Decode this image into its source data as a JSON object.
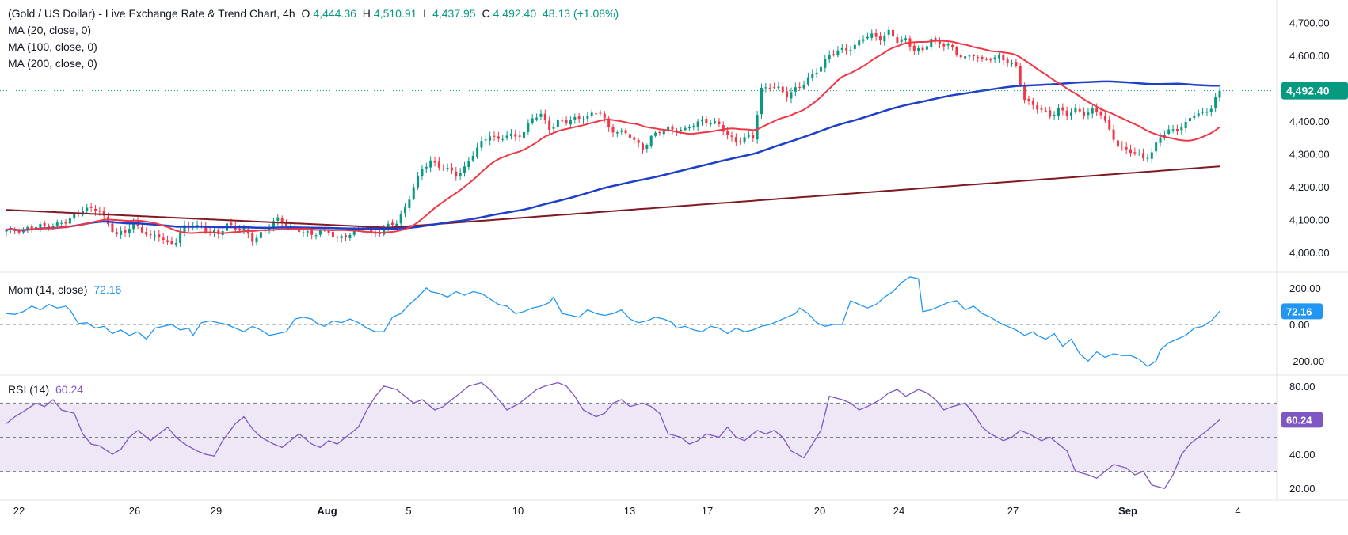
{
  "header": {
    "title": "(Gold / US Dollar) - Live Exchange Rate & Trend Chart, 4h",
    "o_label": "O",
    "o_value": "4,444.36",
    "h_label": "H",
    "h_value": "4,510.91",
    "l_label": "L",
    "l_value": "4,437.95",
    "c_label": "C",
    "c_value": "4,492.40",
    "change": "48.13 (+1.08%)",
    "ma_labels": [
      "MA (20, close, 0)",
      "MA (100, close, 0)",
      "MA (200, close, 0)"
    ]
  },
  "momentum": {
    "label": "Mom (14, close)",
    "value": "72.16"
  },
  "rsi": {
    "label": "RSI (14)",
    "value": "60.24"
  },
  "price_axis": {
    "ticks": [
      "4,700.00",
      "4,600.00",
      "4,500.00",
      "4,400.00",
      "4,300.00",
      "4,200.00",
      "4,100.00",
      "4,000.00"
    ],
    "last": "4,492.40"
  },
  "mom_axis": {
    "ticks": [
      "200.00",
      "0.00",
      "-200.00"
    ],
    "last": "72.16"
  },
  "rsi_axis": {
    "ticks": [
      "80.00",
      "40.00",
      "20.00"
    ],
    "last": "60.24"
  },
  "x_axis": {
    "ticks": [
      "22",
      "26",
      "29",
      "Aug",
      "5",
      "10",
      "13",
      "17",
      "20",
      "24",
      "27",
      "Sep",
      "4"
    ]
  },
  "colors": {
    "up": "#089981",
    "down": "#f23645",
    "ma20": "#f23645",
    "ma100": "#1e40c8",
    "ma200": "#801922",
    "mom": "#2196f3",
    "rsi": "#7e57c2",
    "rsi_band": "#ede7f6",
    "last_price": "#089981"
  },
  "chart_data": [
    {
      "type": "candlestick",
      "title": "(Gold / US Dollar) - Live Exchange Rate & Trend Chart, 4h",
      "x_ticks": [
        "22",
        "26",
        "29",
        "Aug",
        "5",
        "10",
        "13",
        "17",
        "20",
        "24",
        "27",
        "Sep",
        "4"
      ],
      "ylim": [
        3950,
        4720
      ],
      "close_path": [
        [
          0,
          4065
        ],
        [
          14,
          4090
        ],
        [
          18,
          4135
        ],
        [
          22,
          4125
        ],
        [
          24,
          4090
        ],
        [
          26,
          4055
        ],
        [
          28,
          4060
        ],
        [
          30,
          4090
        ],
        [
          32,
          4070
        ],
        [
          34,
          4045
        ],
        [
          36,
          4050
        ],
        [
          38,
          4030
        ],
        [
          40,
          4035
        ],
        [
          42,
          4075
        ],
        [
          44,
          4085
        ],
        [
          46,
          4080
        ],
        [
          48,
          4060
        ],
        [
          50,
          4055
        ],
        [
          52,
          4090
        ],
        [
          54,
          4075
        ],
        [
          56,
          4065
        ],
        [
          58,
          4040
        ],
        [
          62,
          4080
        ],
        [
          64,
          4100
        ],
        [
          66,
          4090
        ],
        [
          68,
          4070
        ],
        [
          70,
          4060
        ],
        [
          72,
          4055
        ],
        [
          74,
          4070
        ],
        [
          76,
          4060
        ],
        [
          78,
          4040
        ],
        [
          80,
          4055
        ],
        [
          82,
          4065
        ],
        [
          84,
          4075
        ],
        [
          86,
          4060
        ],
        [
          88,
          4065
        ],
        [
          90,
          4080
        ],
        [
          92,
          4090
        ],
        [
          94,
          4140
        ],
        [
          96,
          4200
        ],
        [
          98,
          4250
        ],
        [
          100,
          4280
        ],
        [
          102,
          4265
        ],
        [
          104,
          4250
        ],
        [
          106,
          4235
        ],
        [
          108,
          4260
        ],
        [
          110,
          4300
        ],
        [
          112,
          4330
        ],
        [
          114,
          4360
        ],
        [
          116,
          4345
        ],
        [
          118,
          4355
        ],
        [
          120,
          4350
        ],
        [
          122,
          4370
        ],
        [
          124,
          4410
        ],
        [
          126,
          4415
        ],
        [
          128,
          4380
        ],
        [
          130,
          4400
        ],
        [
          132,
          4395
        ],
        [
          134,
          4405
        ],
        [
          136,
          4415
        ],
        [
          138,
          4420
        ],
        [
          140,
          4425
        ],
        [
          142,
          4380
        ],
        [
          144,
          4370
        ],
        [
          146,
          4360
        ],
        [
          148,
          4340
        ],
        [
          150,
          4320
        ],
        [
          152,
          4350
        ],
        [
          154,
          4365
        ],
        [
          156,
          4380
        ],
        [
          158,
          4375
        ],
        [
          160,
          4370
        ],
        [
          162,
          4390
        ],
        [
          164,
          4405
        ],
        [
          166,
          4395
        ],
        [
          168,
          4385
        ],
        [
          170,
          4360
        ],
        [
          172,
          4340
        ],
        [
          174,
          4345
        ],
        [
          176,
          4350
        ],
        [
          178,
          4500
        ],
        [
          180,
          4505
        ],
        [
          182,
          4495
        ],
        [
          184,
          4480
        ],
        [
          186,
          4500
        ],
        [
          188,
          4510
        ],
        [
          190,
          4540
        ],
        [
          192,
          4570
        ],
        [
          194,
          4600
        ],
        [
          196,
          4610
        ],
        [
          198,
          4620
        ],
        [
          200,
          4630
        ],
        [
          202,
          4650
        ],
        [
          204,
          4660
        ],
        [
          206,
          4655
        ],
        [
          208,
          4670
        ],
        [
          210,
          4640
        ],
        [
          212,
          4650
        ],
        [
          214,
          4620
        ],
        [
          216,
          4610
        ],
        [
          218,
          4650
        ],
        [
          220,
          4640
        ],
        [
          222,
          4630
        ],
        [
          224,
          4600
        ],
        [
          226,
          4595
        ],
        [
          228,
          4605
        ],
        [
          230,
          4580
        ],
        [
          232,
          4590
        ],
        [
          234,
          4600
        ],
        [
          236,
          4580
        ],
        [
          238,
          4560
        ],
        [
          240,
          4470
        ],
        [
          242,
          4450
        ],
        [
          244,
          4430
        ],
        [
          246,
          4415
        ],
        [
          248,
          4440
        ],
        [
          250,
          4420
        ],
        [
          252,
          4430
        ],
        [
          254,
          4425
        ],
        [
          256,
          4435
        ],
        [
          258,
          4420
        ],
        [
          260,
          4370
        ],
        [
          262,
          4330
        ],
        [
          264,
          4310
        ],
        [
          266,
          4300
        ],
        [
          268,
          4290
        ],
        [
          270,
          4305
        ],
        [
          272,
          4350
        ],
        [
          274,
          4370
        ],
        [
          276,
          4380
        ],
        [
          278,
          4390
        ],
        [
          280,
          4420
        ],
        [
          282,
          4425
        ],
        [
          284,
          4444
        ],
        [
          286,
          4492
        ]
      ]
    },
    {
      "type": "line",
      "title": "Mom (14, close)",
      "ylim": [
        -260,
        260
      ],
      "x_ticks": [
        "22",
        "26",
        "29",
        "Aug",
        "5",
        "10",
        "13",
        "17",
        "20",
        "24",
        "27",
        "Sep",
        "4"
      ],
      "values": [
        60,
        55,
        70,
        100,
        80,
        110,
        90,
        100,
        80,
        5,
        10,
        -20,
        -10,
        -50,
        -30,
        -60,
        -40,
        -80,
        -20,
        -10,
        0,
        -30,
        -20,
        -60,
        10,
        20,
        10,
        0,
        -20,
        -40,
        -10,
        -30,
        -60,
        -50,
        -40,
        30,
        40,
        30,
        10,
        -10,
        20,
        10,
        30,
        10,
        -20,
        -40,
        -40,
        40,
        60,
        110,
        150,
        200,
        180,
        170,
        150,
        180,
        160,
        180,
        170,
        140,
        110,
        100,
        60,
        70,
        90,
        100,
        120,
        150,
        60,
        50,
        40,
        80,
        60,
        50,
        60,
        80,
        30,
        10,
        20,
        40,
        30,
        10,
        -20,
        -10,
        -30,
        -40,
        -10,
        -20,
        -50,
        -20,
        -40,
        -30,
        -10,
        0,
        20,
        40,
        60,
        90,
        60,
        10,
        -10,
        0,
        0,
        130,
        110,
        90,
        110,
        150,
        180,
        230,
        260,
        250,
        70,
        80,
        100,
        120,
        130,
        80,
        100,
        60,
        40,
        10,
        -10,
        -30,
        -60,
        -40,
        -60,
        -80,
        -50,
        -120,
        -80,
        -160,
        -200,
        -150,
        -180,
        -160,
        -170,
        -170,
        -190,
        -230,
        -200,
        -140,
        -100,
        -80,
        -60,
        -20,
        -10,
        20,
        72.16
      ]
    },
    {
      "type": "line",
      "title": "RSI (14)",
      "ylim": [
        15,
        85
      ],
      "x_ticks": [
        "22",
        "26",
        "29",
        "Aug",
        "5",
        "10",
        "13",
        "17",
        "20",
        "24",
        "27",
        "Sep",
        "4"
      ],
      "bands": [
        30,
        50,
        70
      ],
      "values": [
        58,
        62,
        65,
        70,
        68,
        72,
        66,
        64,
        52,
        46,
        45,
        40,
        43,
        50,
        54,
        48,
        52,
        56,
        50,
        46,
        42,
        40,
        39,
        48,
        58,
        62,
        55,
        50,
        46,
        44,
        48,
        52,
        46,
        44,
        48,
        46,
        50,
        56,
        66,
        74,
        80,
        78,
        74,
        70,
        72,
        66,
        68,
        72,
        76,
        80,
        82,
        78,
        72,
        66,
        70,
        74,
        78,
        80,
        82,
        80,
        74,
        66,
        62,
        64,
        70,
        72,
        68,
        70,
        68,
        64,
        52,
        50,
        46,
        48,
        52,
        50,
        56,
        50,
        48,
        54,
        52,
        54,
        50,
        42,
        38,
        46,
        54,
        74,
        72,
        70,
        66,
        68,
        72,
        76,
        78,
        74,
        78,
        76,
        72,
        66,
        68,
        70,
        64,
        56,
        52,
        48,
        50,
        54,
        52,
        48,
        50,
        46,
        42,
        30,
        28,
        26,
        30,
        34,
        32,
        28,
        30,
        22,
        20,
        28,
        40,
        46,
        52,
        56,
        60.24
      ]
    }
  ]
}
